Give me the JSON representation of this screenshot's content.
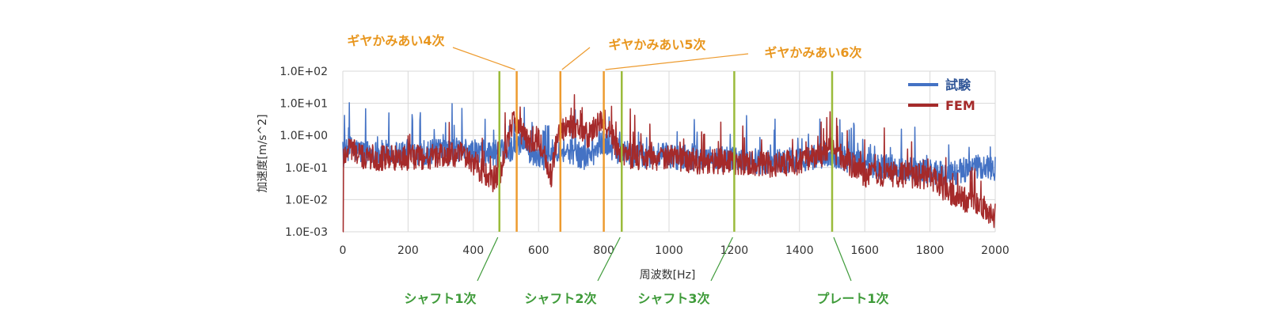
{
  "chart_data": {
    "type": "line",
    "xlabel": "周波数[Hz]",
    "ylabel": "加速度[m/s^2]",
    "xlim": [
      0,
      2000
    ],
    "ylim": [
      0.001,
      100
    ],
    "y_scale": "log",
    "x_ticks": [
      0,
      200,
      400,
      600,
      800,
      1000,
      1200,
      1400,
      1600,
      1800,
      2000
    ],
    "x_tick_labels": [
      "0",
      "200",
      "400",
      "600",
      "800",
      "1000",
      "1200",
      "1400",
      "1600",
      "1800",
      "2000"
    ],
    "y_ticks": [
      100,
      10,
      1,
      0.1,
      0.01,
      0.001
    ],
    "y_tick_labels": [
      "1.0E+02",
      "1.0E+01",
      "1.0E+00",
      "1.0E-01",
      "1.0E-02",
      "1.0E-03"
    ],
    "grid": true,
    "legend_position": "top-right",
    "series": [
      {
        "name": "試験",
        "color": "#4472c4",
        "x": [
          0,
          20,
          60,
          100,
          200,
          300,
          360,
          400,
          450,
          500,
          540,
          580,
          620,
          660,
          700,
          750,
          800,
          850,
          900,
          1000,
          1100,
          1200,
          1300,
          1400,
          1500,
          1600,
          1700,
          1800,
          1850,
          1900,
          1950,
          2000
        ],
        "y": [
          0.2,
          0.4,
          0.3,
          0.28,
          0.3,
          0.3,
          0.35,
          0.3,
          0.28,
          0.3,
          0.6,
          0.3,
          0.2,
          0.4,
          0.3,
          0.2,
          0.6,
          0.3,
          0.25,
          0.22,
          0.2,
          0.18,
          0.15,
          0.18,
          0.25,
          0.12,
          0.1,
          0.08,
          0.06,
          0.08,
          0.1,
          0.1
        ]
      },
      {
        "name": "FEM",
        "color": "#a52a2a",
        "x": [
          0,
          20,
          60,
          100,
          200,
          300,
          360,
          400,
          450,
          480,
          500,
          520,
          540,
          560,
          600,
          640,
          660,
          700,
          750,
          800,
          850,
          900,
          1000,
          1100,
          1200,
          1300,
          1400,
          1500,
          1600,
          1700,
          1800,
          1850,
          1900,
          1950,
          2000
        ],
        "y": [
          0.2,
          0.5,
          0.2,
          0.2,
          0.2,
          0.22,
          0.25,
          0.15,
          0.04,
          0.05,
          0.3,
          3.0,
          2.0,
          0.7,
          0.8,
          0.05,
          1.5,
          2.0,
          1.0,
          3.0,
          0.3,
          0.2,
          0.2,
          0.15,
          0.15,
          0.12,
          0.15,
          0.35,
          0.06,
          0.06,
          0.05,
          0.02,
          0.01,
          0.008,
          0.003
        ]
      }
    ],
    "vlines": [
      {
        "x": 480,
        "label": "シャフト1次",
        "kind": "green"
      },
      {
        "x": 533,
        "label": "ギヤかみあい4次",
        "kind": "orange"
      },
      {
        "x": 667,
        "label": "ギヤかみあい5次",
        "kind": "orange"
      },
      {
        "x": 800,
        "label": "ギヤかみあい6次",
        "kind": "orange"
      },
      {
        "x": 855,
        "label": "シャフト2次",
        "kind": "green"
      },
      {
        "x": 1200,
        "label": "シャフト3次",
        "kind": "green"
      },
      {
        "x": 1500,
        "label": "プレート1次",
        "kind": "green"
      }
    ],
    "colors": {
      "orange": "#ed9b2f",
      "orange_text": "#e8961e",
      "green": "#9bbb3b",
      "green_text": "#3f9b3a",
      "grid": "#d9d9d9"
    }
  }
}
